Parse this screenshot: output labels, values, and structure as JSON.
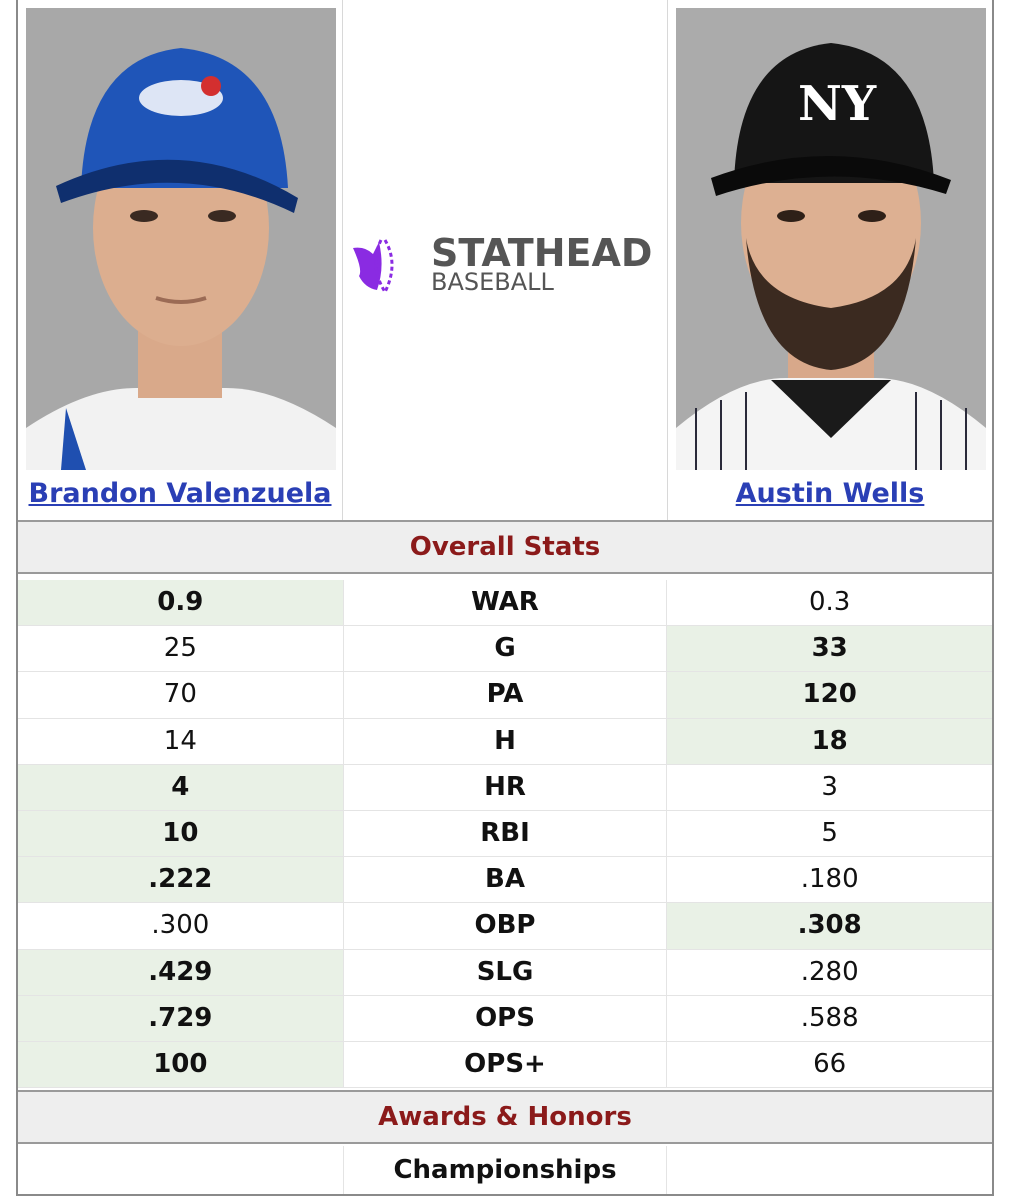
{
  "players": {
    "left": {
      "name": "Brandon Valenzuela",
      "photo": "player-headshot"
    },
    "right": {
      "name": "Austin Wells",
      "photo": "player-headshot"
    }
  },
  "logo": {
    "main": "STATHEAD",
    "sub": "BASEBALL",
    "colors": {
      "purple": "#8a2be2",
      "gray": "#555555"
    }
  },
  "sections": {
    "overall": "Overall Stats",
    "awards": "Awards & Honors"
  },
  "stats": [
    {
      "label": "WAR",
      "left": "0.9",
      "right": "0.3",
      "winner": "left"
    },
    {
      "label": "G",
      "left": "25",
      "right": "33",
      "winner": "right"
    },
    {
      "label": "PA",
      "left": "70",
      "right": "120",
      "winner": "right"
    },
    {
      "label": "H",
      "left": "14",
      "right": "18",
      "winner": "right"
    },
    {
      "label": "HR",
      "left": "4",
      "right": "3",
      "winner": "left"
    },
    {
      "label": "RBI",
      "left": "10",
      "right": "5",
      "winner": "left"
    },
    {
      "label": "BA",
      "left": ".222",
      "right": ".180",
      "winner": "left"
    },
    {
      "label": "OBP",
      "left": ".300",
      "right": ".308",
      "winner": "right"
    },
    {
      "label": "SLG",
      "left": ".429",
      "right": ".280",
      "winner": "left"
    },
    {
      "label": "OPS",
      "left": ".729",
      "right": ".588",
      "winner": "left"
    },
    {
      "label": "OPS+",
      "left": "100",
      "right": "66",
      "winner": "left"
    }
  ],
  "awards": {
    "championships_label": "Championships"
  },
  "colors": {
    "accent": "#8b1a1a",
    "link": "#2a3fb5",
    "win_bg": "#e9f1e6"
  }
}
